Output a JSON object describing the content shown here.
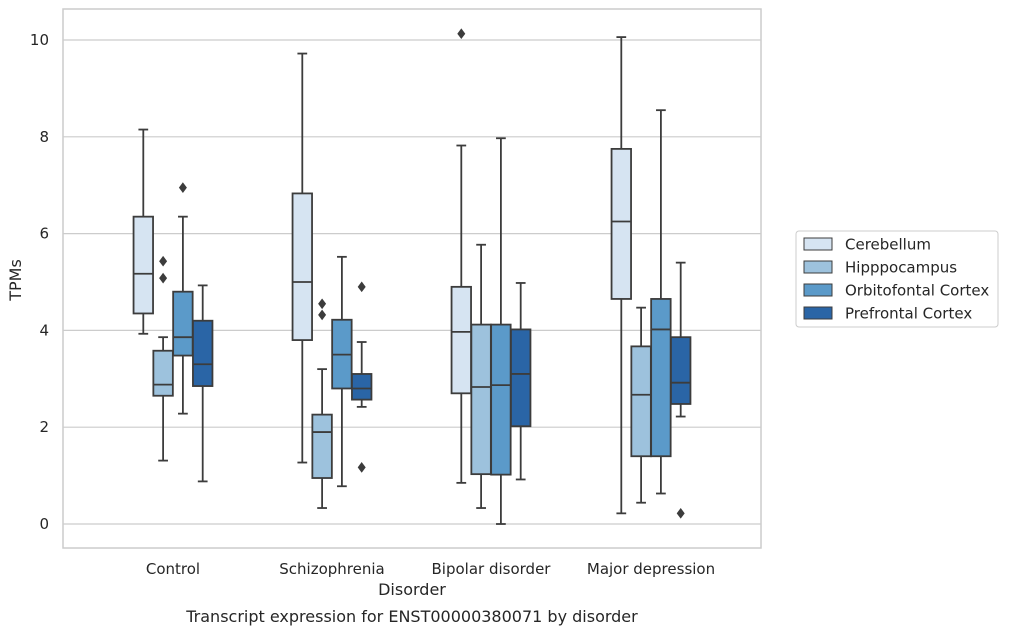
{
  "chart_data": {
    "type": "box",
    "caption": "Transcript expression for ENST00000380071 by disorder",
    "xlabel": "Disorder",
    "ylabel": "TPMs",
    "ylim": [
      -0.5,
      10.65
    ],
    "yticks": [
      0,
      2,
      4,
      6,
      8,
      10
    ],
    "grid": true,
    "legend_position": "right",
    "categories": [
      "Control",
      "Schizophrenia",
      "Bipolar disorder",
      "Major depression"
    ],
    "series": [
      {
        "name": "Cerebellum",
        "color": "#d6e4f2",
        "boxes": [
          {
            "whisker_low": 3.93,
            "q1": 4.35,
            "median": 5.17,
            "q3": 6.35,
            "whisker_high": 8.15,
            "outliers": []
          },
          {
            "whisker_low": 1.27,
            "q1": 3.8,
            "median": 5.0,
            "q3": 6.83,
            "whisker_high": 9.72,
            "outliers": []
          },
          {
            "whisker_low": 0.85,
            "q1": 2.7,
            "median": 3.97,
            "q3": 4.9,
            "whisker_high": 7.82,
            "outliers": [
              10.13
            ]
          },
          {
            "whisker_low": 0.22,
            "q1": 4.65,
            "median": 6.25,
            "q3": 7.75,
            "whisker_high": 10.06,
            "outliers": []
          }
        ]
      },
      {
        "name": "Hipppocampus",
        "color": "#9dc2dd",
        "boxes": [
          {
            "whisker_low": 1.31,
            "q1": 2.65,
            "median": 2.88,
            "q3": 3.58,
            "whisker_high": 3.86,
            "outliers": [
              5.08,
              5.43
            ]
          },
          {
            "whisker_low": 0.33,
            "q1": 0.95,
            "median": 1.9,
            "q3": 2.26,
            "whisker_high": 3.2,
            "outliers": [
              4.32,
              4.55
            ]
          },
          {
            "whisker_low": 0.33,
            "q1": 1.03,
            "median": 2.83,
            "q3": 4.12,
            "whisker_high": 5.77,
            "outliers": []
          },
          {
            "whisker_low": 0.44,
            "q1": 1.4,
            "median": 2.67,
            "q3": 3.67,
            "whisker_high": 4.47,
            "outliers": []
          }
        ]
      },
      {
        "name": "Orbitofontal Cortex",
        "color": "#5b9ac9",
        "boxes": [
          {
            "whisker_low": 2.28,
            "q1": 3.48,
            "median": 3.86,
            "q3": 4.8,
            "whisker_high": 6.35,
            "outliers": [
              6.95
            ]
          },
          {
            "whisker_low": 0.78,
            "q1": 2.8,
            "median": 3.5,
            "q3": 4.22,
            "whisker_high": 5.52,
            "outliers": []
          },
          {
            "whisker_low": 0.0,
            "q1": 1.02,
            "median": 2.87,
            "q3": 4.12,
            "whisker_high": 7.97,
            "outliers": []
          },
          {
            "whisker_low": 0.63,
            "q1": 1.4,
            "median": 4.02,
            "q3": 4.65,
            "whisker_high": 8.55,
            "outliers": []
          }
        ]
      },
      {
        "name": "Prefrontal Cortex",
        "color": "#2a65a6",
        "boxes": [
          {
            "whisker_low": 0.88,
            "q1": 2.85,
            "median": 3.3,
            "q3": 4.2,
            "whisker_high": 4.93,
            "outliers": []
          },
          {
            "whisker_low": 2.42,
            "q1": 2.57,
            "median": 2.8,
            "q3": 3.1,
            "whisker_high": 3.76,
            "outliers": [
              1.17,
              4.9
            ]
          },
          {
            "whisker_low": 0.92,
            "q1": 2.02,
            "median": 3.1,
            "q3": 4.02,
            "whisker_high": 4.98,
            "outliers": []
          },
          {
            "whisker_low": 2.22,
            "q1": 2.48,
            "median": 2.92,
            "q3": 3.86,
            "whisker_high": 5.4,
            "outliers": [
              0.22
            ]
          }
        ]
      }
    ]
  }
}
